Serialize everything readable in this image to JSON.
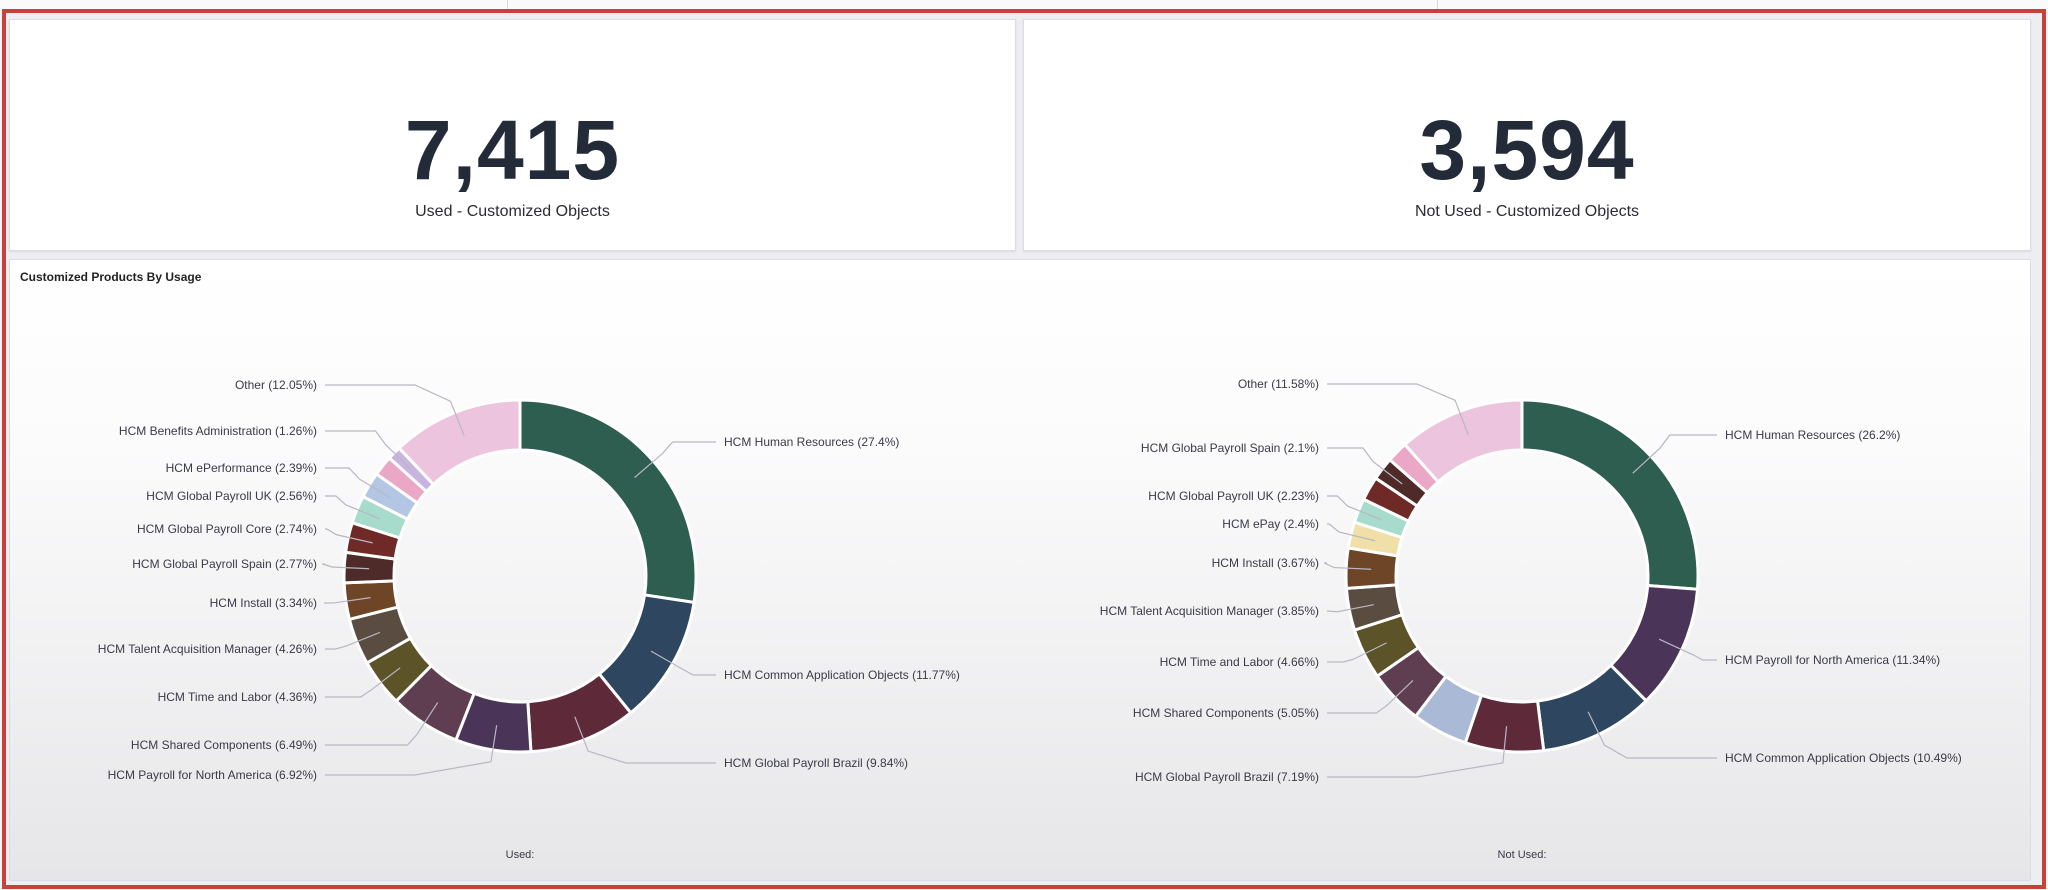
{
  "kpis": [
    {
      "value": "7,415",
      "label": "Used - Customized Objects"
    },
    {
      "value": "3,594",
      "label": "Not Used - Customized Objects"
    }
  ],
  "chart_panel": {
    "title": "Customized Products By Usage"
  },
  "chart_data": [
    {
      "type": "pie",
      "donut": true,
      "caption": "Used:",
      "slices": [
        {
          "name": "HCM Human Resources",
          "value": 27.4,
          "label": "HCM Human Resources (27.4%)",
          "color": "#2d5e4f"
        },
        {
          "name": "HCM Common Application Objects",
          "value": 11.77,
          "label": "HCM Common Application Objects (11.77%)",
          "color": "#2e4660"
        },
        {
          "name": "HCM Global Payroll Brazil",
          "value": 9.84,
          "label": "HCM Global Payroll Brazil (9.84%)",
          "color": "#5e2a3a"
        },
        {
          "name": "HCM Payroll for North America",
          "value": 6.92,
          "label": "HCM Payroll for North America (6.92%)",
          "color": "#4a3558"
        },
        {
          "name": "HCM Shared Components",
          "value": 6.49,
          "label": "HCM Shared Components (6.49%)",
          "color": "#5e3e50"
        },
        {
          "name": "HCM Time and Labor",
          "value": 4.36,
          "label": "HCM Time and Labor (4.36%)",
          "color": "#5c5428"
        },
        {
          "name": "HCM Talent Acquisition Manager",
          "value": 4.26,
          "label": "HCM Talent Acquisition Manager (4.26%)",
          "color": "#5a4c40"
        },
        {
          "name": "HCM Install",
          "value": 3.34,
          "label": "HCM Install (3.34%)",
          "color": "#6e4526"
        },
        {
          "name": "HCM Global Payroll Spain",
          "value": 2.77,
          "label": "HCM Global Payroll Spain (2.77%)",
          "color": "#4e2a28"
        },
        {
          "name": "HCM Global Payroll Core",
          "value": 2.74,
          "label": "HCM Global Payroll Core (2.74%)",
          "color": "#6f2a28"
        },
        {
          "name": "HCM Global Payroll UK",
          "value": 2.56,
          "label": "HCM Global Payroll UK (2.56%)",
          "color": "#a7dccc"
        },
        {
          "name": "HCM ePerformance",
          "value": 2.39,
          "label": "HCM ePerformance (2.39%)",
          "color": "#b3c7e5"
        },
        {
          "name": "",
          "value": 1.85,
          "label": "",
          "color": "#eba7c6"
        },
        {
          "name": "HCM Benefits Administration",
          "value": 1.26,
          "label": "HCM Benefits Administration (1.26%)",
          "color": "#c9b4df"
        },
        {
          "name": "Other",
          "value": 12.05,
          "label": "Other (12.05%)",
          "color": "#ecc4de"
        }
      ]
    },
    {
      "type": "pie",
      "donut": true,
      "caption": "Not Used:",
      "slices": [
        {
          "name": "HCM Human Resources",
          "value": 26.2,
          "label": "HCM Human Resources (26.2%)",
          "color": "#2d5e4f"
        },
        {
          "name": "HCM Payroll for North America",
          "value": 11.34,
          "label": "HCM Payroll for North America (11.34%)",
          "color": "#4a3558"
        },
        {
          "name": "HCM Common Application Objects",
          "value": 10.49,
          "label": "HCM Common Application Objects (10.49%)",
          "color": "#2e4660"
        },
        {
          "name": "HCM Global Payroll Brazil",
          "value": 7.19,
          "label": "HCM Global Payroll Brazil (7.19%)",
          "color": "#5e2a3a"
        },
        {
          "name": "",
          "value": 5.1,
          "label": "",
          "color": "#a9b9d6"
        },
        {
          "name": "HCM Shared Components",
          "value": 5.05,
          "label": "HCM Shared Components (5.05%)",
          "color": "#5e3e50"
        },
        {
          "name": "HCM Time and Labor",
          "value": 4.66,
          "label": "HCM Time and Labor (4.66%)",
          "color": "#5c5428"
        },
        {
          "name": "HCM Talent Acquisition Manager",
          "value": 3.85,
          "label": "HCM Talent Acquisition Manager (3.85%)",
          "color": "#5a4c40"
        },
        {
          "name": "HCM Install",
          "value": 3.67,
          "label": "HCM Install (3.67%)",
          "color": "#6e4526"
        },
        {
          "name": "HCM ePay",
          "value": 2.4,
          "label": "HCM ePay (2.4%)",
          "color": "#f1dfa8"
        },
        {
          "name": "HCM Global Payroll UK",
          "value": 2.23,
          "label": "HCM Global Payroll UK (2.23%)",
          "color": "#a7dccc"
        },
        {
          "name": "",
          "value": 2.2,
          "label": "",
          "color": "#6f2a28"
        },
        {
          "name": "HCM Global Payroll Spain",
          "value": 2.1,
          "label": "HCM Global Payroll Spain (2.1%)",
          "color": "#4e2a28"
        },
        {
          "name": "",
          "value": 1.94,
          "label": "",
          "color": "#eba7c6"
        },
        {
          "name": "Other",
          "value": 11.58,
          "label": "Other (11.58%)",
          "color": "#ecc4de"
        }
      ]
    }
  ]
}
